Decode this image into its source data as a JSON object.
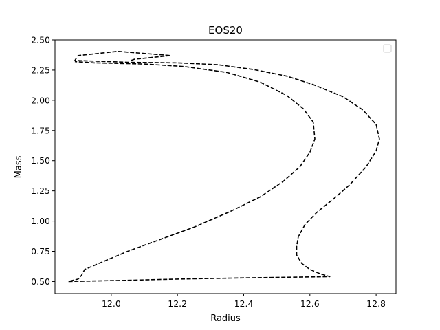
{
  "chart_data": {
    "type": "line",
    "title": "EOS20",
    "xlabel": "Radius",
    "ylabel": "Mass",
    "xlim": [
      11.83,
      12.86
    ],
    "ylim": [
      0.4,
      2.5
    ],
    "xticks": [
      12.0,
      12.2,
      12.4,
      12.6,
      12.8
    ],
    "xtick_labels": [
      "12.0",
      "12.2",
      "12.4",
      "12.6",
      "12.8"
    ],
    "yticks": [
      0.5,
      0.75,
      1.0,
      1.25,
      1.5,
      1.75,
      2.0,
      2.25,
      2.5
    ],
    "ytick_labels": [
      "0.50",
      "0.75",
      "1.00",
      "1.25",
      "1.50",
      "1.75",
      "2.00",
      "2.25",
      "2.50"
    ],
    "grid": false,
    "legend": {
      "placement": "top-right",
      "entries": []
    },
    "series": [
      {
        "name": "",
        "color": "#000000",
        "linestyle": "dashed",
        "points": [
          [
            12.06,
            2.33
          ],
          [
            12.07,
            2.34
          ],
          [
            12.18,
            2.37
          ],
          [
            12.02,
            2.405
          ],
          [
            11.9,
            2.37
          ],
          [
            11.89,
            2.33
          ],
          [
            12.05,
            2.315
          ],
          [
            12.2,
            2.31
          ],
          [
            12.32,
            2.295
          ],
          [
            12.43,
            2.255
          ],
          [
            12.53,
            2.2
          ],
          [
            12.61,
            2.13
          ],
          [
            12.7,
            2.03
          ],
          [
            12.76,
            1.92
          ],
          [
            12.8,
            1.8
          ],
          [
            12.81,
            1.68
          ],
          [
            12.8,
            1.58
          ],
          [
            12.77,
            1.45
          ],
          [
            12.72,
            1.3
          ],
          [
            12.67,
            1.18
          ],
          [
            12.62,
            1.07
          ],
          [
            12.585,
            0.97
          ],
          [
            12.565,
            0.87
          ],
          [
            12.56,
            0.79
          ],
          [
            12.56,
            0.72
          ],
          [
            12.575,
            0.65
          ],
          [
            12.6,
            0.6
          ],
          [
            12.63,
            0.565
          ],
          [
            12.66,
            0.54
          ],
          [
            12.4,
            0.53
          ],
          [
            12.2,
            0.52
          ],
          [
            12.05,
            0.51
          ],
          [
            11.87,
            0.5
          ],
          [
            11.9,
            0.52
          ],
          [
            11.91,
            0.55
          ],
          [
            11.92,
            0.6
          ],
          [
            11.98,
            0.67
          ],
          [
            12.05,
            0.75
          ],
          [
            12.15,
            0.85
          ],
          [
            12.25,
            0.95
          ],
          [
            12.36,
            1.08
          ],
          [
            12.45,
            1.2
          ],
          [
            12.52,
            1.33
          ],
          [
            12.57,
            1.45
          ],
          [
            12.6,
            1.57
          ],
          [
            12.615,
            1.68
          ],
          [
            12.61,
            1.82
          ],
          [
            12.58,
            1.93
          ],
          [
            12.53,
            2.04
          ],
          [
            12.45,
            2.15
          ],
          [
            12.35,
            2.23
          ],
          [
            12.22,
            2.28
          ],
          [
            12.1,
            2.3
          ],
          [
            11.95,
            2.31
          ],
          [
            11.89,
            2.32
          ]
        ]
      }
    ]
  }
}
